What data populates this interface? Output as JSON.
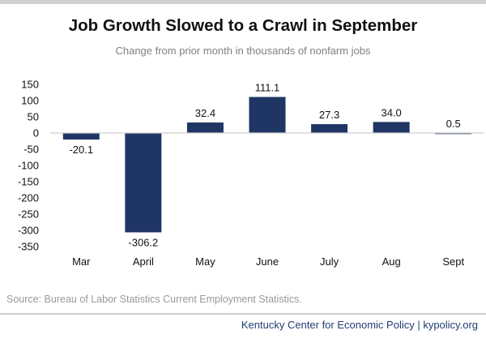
{
  "header": {
    "title": "Job Growth Slowed to a Crawl in September",
    "subtitle": "Change from prior month in thousands of nonfarm jobs"
  },
  "chart_data": {
    "type": "bar",
    "categories": [
      "Mar",
      "April",
      "May",
      "June",
      "July",
      "Aug",
      "Sept"
    ],
    "values": [
      -20.1,
      -306.2,
      32.4,
      111.1,
      27.3,
      34.0,
      0.5
    ],
    "data_labels": [
      "-20.1",
      "-306.2",
      "32.4",
      "111.1",
      "27.3",
      "34.0",
      "0.5"
    ],
    "yticks": [
      150,
      100,
      50,
      0,
      -50,
      -100,
      -150,
      -200,
      -250,
      -300,
      -350
    ],
    "ylim": [
      -350,
      150
    ],
    "bar_color": "#1f3564",
    "grid": false,
    "legend": "none"
  },
  "footer": {
    "source": "Source: Bureau of Labor Statistics Current Employment Statistics.",
    "credit": "Kentucky Center for Economic Policy | kypolicy.org"
  },
  "colors": {
    "credit": "#1f3e73",
    "rules": "#d0d0d0"
  }
}
